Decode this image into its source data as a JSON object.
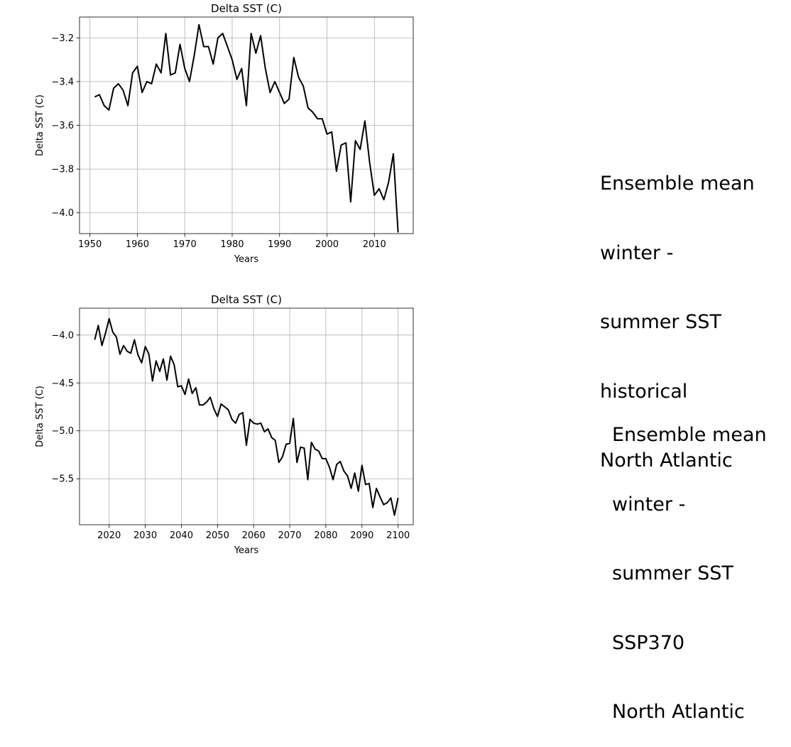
{
  "chart_data": [
    {
      "type": "line",
      "title": "Delta SST (C)",
      "xlabel": "Years",
      "ylabel": "Delta SST (C)",
      "grid": true,
      "xlim": [
        1947.8,
        2018.2
      ],
      "ylim": [
        -4.095,
        -3.105
      ],
      "xticks": [
        1950,
        1960,
        1970,
        1980,
        1990,
        2000,
        2010
      ],
      "yticks": [
        -4.0,
        -3.8,
        -3.6,
        -3.4,
        -3.2
      ],
      "ytick_labels": [
        "−4.0",
        "−3.8",
        "−3.6",
        "−3.4",
        "−3.2"
      ],
      "x": [
        1951,
        1952,
        1953,
        1954,
        1955,
        1956,
        1957,
        1958,
        1959,
        1960,
        1961,
        1962,
        1963,
        1964,
        1965,
        1966,
        1967,
        1968,
        1969,
        1970,
        1971,
        1972,
        1973,
        1974,
        1975,
        1976,
        1977,
        1978,
        1979,
        1980,
        1981,
        1982,
        1983,
        1984,
        1985,
        1986,
        1987,
        1988,
        1989,
        1990,
        1991,
        1992,
        1993,
        1994,
        1995,
        1996,
        1997,
        1998,
        1999,
        2000,
        2001,
        2002,
        2003,
        2004,
        2005,
        2006,
        2007,
        2008,
        2009,
        2010,
        2011,
        2012,
        2013,
        2014,
        2015
      ],
      "series": [
        {
          "color": "#000000",
          "values": [
            -3.47,
            -3.46,
            -3.51,
            -3.53,
            -3.43,
            -3.41,
            -3.44,
            -3.51,
            -3.36,
            -3.33,
            -3.45,
            -3.4,
            -3.41,
            -3.32,
            -3.36,
            -3.18,
            -3.37,
            -3.36,
            -3.23,
            -3.34,
            -3.4,
            -3.28,
            -3.14,
            -3.24,
            -3.24,
            -3.32,
            -3.2,
            -3.18,
            -3.24,
            -3.3,
            -3.39,
            -3.34,
            -3.51,
            -3.18,
            -3.27,
            -3.19,
            -3.34,
            -3.45,
            -3.4,
            -3.45,
            -3.5,
            -3.48,
            -3.29,
            -3.38,
            -3.42,
            -3.52,
            -3.54,
            -3.57,
            -3.57,
            -3.64,
            -3.63,
            -3.81,
            -3.69,
            -3.68,
            -3.95,
            -3.67,
            -3.71,
            -3.58,
            -3.77,
            -3.92,
            -3.89,
            -3.94,
            -3.86,
            -3.73,
            -4.09
          ]
        }
      ]
    },
    {
      "type": "line",
      "title": "Delta SST (C)",
      "xlabel": "Years",
      "ylabel": "Delta SST (C)",
      "grid": true,
      "xlim": [
        2011.8,
        2104.2
      ],
      "ylim": [
        -5.98,
        -3.72
      ],
      "xticks": [
        2020,
        2030,
        2040,
        2050,
        2060,
        2070,
        2080,
        2090,
        2100
      ],
      "yticks": [
        -5.5,
        -5.0,
        -4.5,
        -4.0
      ],
      "ytick_labels": [
        "−5.5",
        "−5.0",
        "−4.5",
        "−4.0"
      ],
      "x": [
        2016,
        2017,
        2018,
        2019,
        2020,
        2021,
        2022,
        2023,
        2024,
        2025,
        2026,
        2027,
        2028,
        2029,
        2030,
        2031,
        2032,
        2033,
        2034,
        2035,
        2036,
        2037,
        2038,
        2039,
        2040,
        2041,
        2042,
        2043,
        2044,
        2045,
        2046,
        2047,
        2048,
        2049,
        2050,
        2051,
        2052,
        2053,
        2054,
        2055,
        2056,
        2057,
        2058,
        2059,
        2060,
        2061,
        2062,
        2063,
        2064,
        2065,
        2066,
        2067,
        2068,
        2069,
        2070,
        2071,
        2072,
        2073,
        2074,
        2075,
        2076,
        2077,
        2078,
        2079,
        2080,
        2081,
        2082,
        2083,
        2084,
        2085,
        2086,
        2087,
        2088,
        2089,
        2090,
        2091,
        2092,
        2093,
        2094,
        2095,
        2096,
        2097,
        2098,
        2099,
        2100
      ],
      "series": [
        {
          "color": "#000000",
          "values": [
            -4.05,
            -3.9,
            -4.11,
            -3.98,
            -3.83,
            -3.97,
            -4.02,
            -4.2,
            -4.11,
            -4.17,
            -4.19,
            -4.05,
            -4.21,
            -4.29,
            -4.12,
            -4.2,
            -4.48,
            -4.27,
            -4.38,
            -4.25,
            -4.47,
            -4.22,
            -4.31,
            -4.54,
            -4.53,
            -4.62,
            -4.46,
            -4.61,
            -4.55,
            -4.73,
            -4.73,
            -4.7,
            -4.65,
            -4.77,
            -4.85,
            -4.72,
            -4.75,
            -4.78,
            -4.88,
            -4.92,
            -4.83,
            -4.81,
            -5.15,
            -4.88,
            -4.92,
            -4.93,
            -4.92,
            -5.01,
            -4.98,
            -5.07,
            -5.1,
            -5.33,
            -5.27,
            -5.14,
            -5.13,
            -4.87,
            -5.33,
            -5.17,
            -5.18,
            -5.51,
            -5.12,
            -5.19,
            -5.21,
            -5.29,
            -5.29,
            -5.38,
            -5.51,
            -5.35,
            -5.32,
            -5.42,
            -5.47,
            -5.6,
            -5.44,
            -5.63,
            -5.36,
            -5.56,
            -5.55,
            -5.8,
            -5.6,
            -5.69,
            -5.77,
            -5.75,
            -5.7,
            -5.88,
            -5.7
          ]
        }
      ]
    }
  ],
  "captions": [
    {
      "lines": [
        "Ensemble mean",
        "winter -",
        "summer SST",
        "historical",
        "North Atlantic"
      ]
    },
    {
      "lines": [
        "Ensemble mean",
        "winter -",
        "summer SST",
        "SSP370",
        "North Atlantic"
      ]
    }
  ]
}
